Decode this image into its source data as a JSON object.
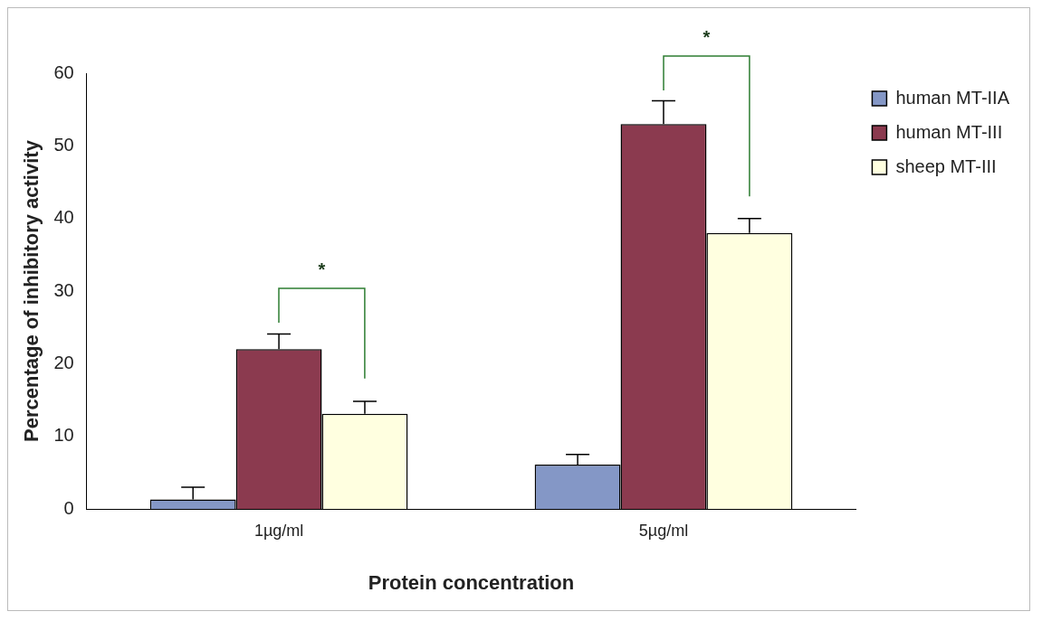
{
  "chart_data": {
    "type": "bar",
    "xlabel": "Protein concentration",
    "ylabel": "Percentage of inhibitory activity",
    "categories": [
      "1µg/ml",
      "5µg/ml"
    ],
    "series": [
      {
        "name": "human MT-IIA",
        "color": "#8497c6",
        "values": [
          1.3,
          6.1
        ],
        "errors": [
          1.7,
          1.4
        ]
      },
      {
        "name": "human MT-III",
        "color": "#8b3a4f",
        "values": [
          22.0,
          53.0
        ],
        "errors": [
          2.1,
          3.2
        ]
      },
      {
        "name": "sheep MT-III",
        "color": "#ffffe0",
        "values": [
          13.1,
          38.0
        ],
        "errors": [
          1.7,
          2.0
        ]
      }
    ],
    "annotations": [
      "*",
      "*"
    ],
    "ylim": [
      0,
      60
    ],
    "yticks": [
      0,
      10,
      20,
      30,
      40,
      50,
      60
    ],
    "grid": false,
    "legend": "top right"
  }
}
